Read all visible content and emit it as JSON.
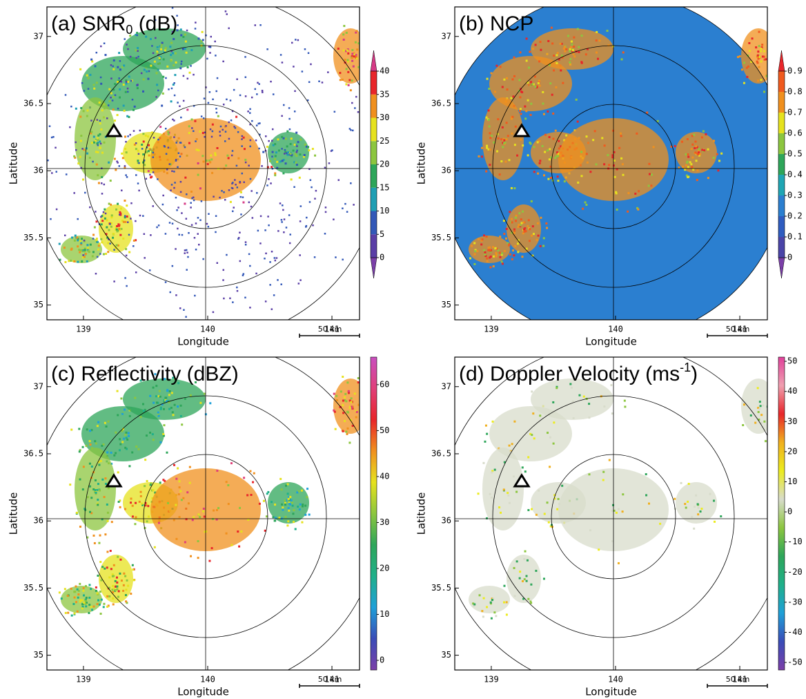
{
  "chart_data": [
    {
      "type": "radar-map",
      "title": "(a) SNR",
      "title_sub": "0",
      "title_end": " (dB)",
      "xlabel": "Longitude",
      "ylabel": "Latitude",
      "xlim": [
        138.706,
        141.222
      ],
      "ylim": [
        34.89,
        37.22
      ],
      "xticks": [
        139,
        140,
        141
      ],
      "yticks": [
        35,
        35.5,
        36,
        36.5,
        37
      ],
      "scale_label": "50 km",
      "colorbar": {
        "kind": "discrete",
        "clim": [
          0,
          40
        ],
        "ticks": [
          0,
          5,
          10,
          15,
          20,
          25,
          30,
          35,
          40
        ],
        "colors": [
          "#7b3fa8",
          "#5a3ea6",
          "#3358b8",
          "#1f9fb4",
          "#2ea65a",
          "#8cc63f",
          "#e6e21e",
          "#f0901e",
          "#e8262a",
          "#d63a86"
        ]
      }
    },
    {
      "type": "radar-map",
      "title": "(b) NCP",
      "xlabel": "Longitude",
      "ylabel": "Latitude",
      "xlim": [
        138.706,
        141.222
      ],
      "ylim": [
        34.89,
        37.22
      ],
      "xticks": [
        139,
        140,
        141
      ],
      "yticks": [
        35,
        35.5,
        36,
        36.5,
        37
      ],
      "scale_label": "50 km",
      "colorbar": {
        "kind": "discrete",
        "clim": [
          0,
          0.9
        ],
        "ticks": [
          0,
          0.1,
          0.2,
          0.3,
          0.4,
          0.5,
          0.6,
          0.7,
          0.8,
          0.9
        ],
        "colors": [
          "#7b3fa8",
          "#4a44a8",
          "#2f5cc0",
          "#2b7fd0",
          "#1fa6b4",
          "#2ea65a",
          "#8cc63f",
          "#e6e21e",
          "#f0901e",
          "#f05a1e",
          "#e8262a"
        ]
      }
    },
    {
      "type": "radar-map",
      "title": "(c) Reflectivity (dBZ)",
      "xlabel": "Longitude",
      "ylabel": "Latitude",
      "xlim": [
        138.706,
        141.222
      ],
      "ylim": [
        34.89,
        37.22
      ],
      "xticks": [
        139,
        140,
        141
      ],
      "yticks": [
        35,
        35.5,
        36,
        36.5,
        37
      ],
      "scale_label": "50 km",
      "colorbar": {
        "kind": "continuous",
        "clim": [
          -2.1,
          66
        ],
        "ticks": [
          0,
          10,
          20,
          30,
          40,
          50,
          60
        ],
        "colors": [
          "#7b3fa8",
          "#3a4cb8",
          "#1fa0d8",
          "#1fb08a",
          "#2ea65a",
          "#8cc63f",
          "#e6e21e",
          "#f0901e",
          "#e8262a",
          "#e0407a",
          "#c94fc0"
        ]
      }
    },
    {
      "type": "radar-map",
      "title": "(d) Doppler Velocity (ms",
      "title_sup": "-1",
      "title_end": ")",
      "xlabel": "Longitude",
      "ylabel": "Latitude",
      "xlim": [
        138.706,
        141.222
      ],
      "ylim": [
        34.89,
        37.22
      ],
      "xticks": [
        139,
        140,
        141
      ],
      "yticks": [
        35,
        35.5,
        36,
        36.5,
        37
      ],
      "scale_label": "50 km",
      "colorbar": {
        "kind": "continuous",
        "clim": [
          -52.5,
          51.4
        ],
        "ticks": [
          -50,
          -40,
          -30,
          -20,
          -10,
          0,
          10,
          20,
          30,
          40,
          50
        ],
        "colors": [
          "#7b3fa8",
          "#3a4cb8",
          "#1fa0d8",
          "#1fb08a",
          "#2ea65a",
          "#8cc63f",
          "#d8dccb",
          "#ecec1e",
          "#f0b01e",
          "#e8262a",
          "#f0a0b0",
          "#e0409a"
        ]
      }
    }
  ]
}
